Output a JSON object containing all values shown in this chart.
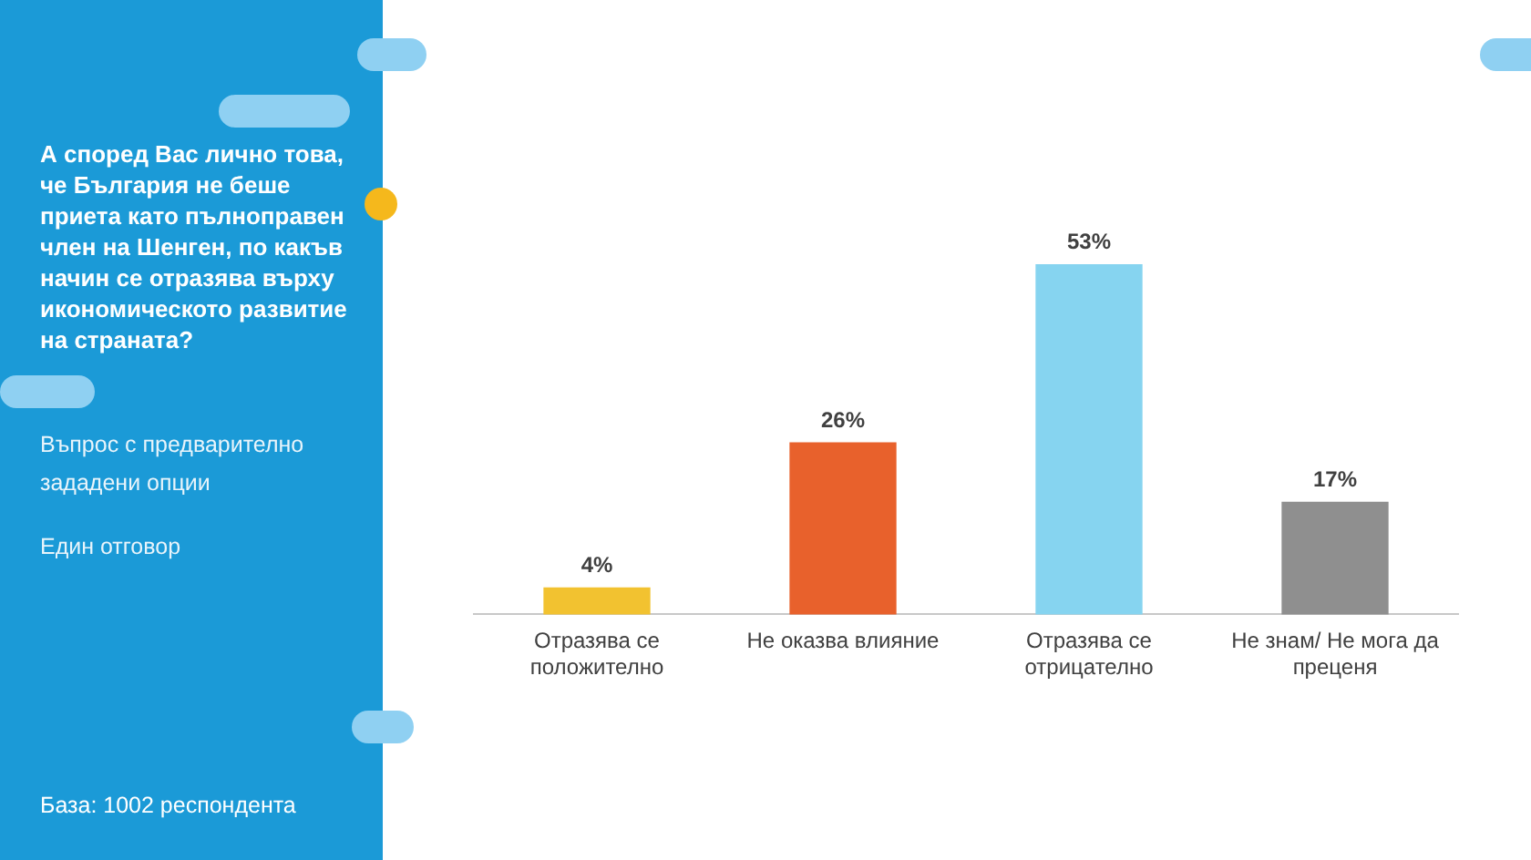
{
  "chart_data": {
    "type": "bar",
    "title": "А според Вас лично това, че България не беше приета като пълноправен член на Шенген, по какъв начин се отразява върху икономическото развитие на страната?",
    "subtitle": "Въпрос с предварително зададени опции",
    "annotations": [
      "Един отговор",
      "База: 1002 респондента"
    ],
    "categories": [
      "Отразява се положително",
      "Не оказва влияние",
      "Отразява се отрицателно",
      "Не знам/ Не мога да преценя"
    ],
    "values": [
      4,
      26,
      53,
      17
    ],
    "colors": [
      "#f2c230",
      "#e8612c",
      "#86d4f0",
      "#8f8f8f"
    ],
    "value_labels": [
      "4%",
      "26%",
      "53%",
      "17%"
    ],
    "grid": false,
    "legend": false
  }
}
